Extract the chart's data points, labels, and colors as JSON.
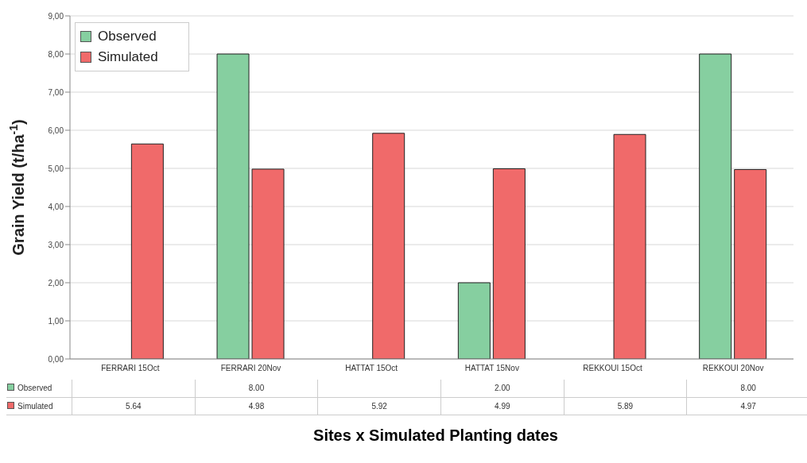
{
  "chart_data": {
    "type": "bar",
    "xlabel": "Sites x Simulated Planting dates",
    "ylabel": "Grain Yield (t/ha$^{-1}$)",
    "categories": [
      "FERRARI 15Oct",
      "FERRARI 20Nov",
      "HATTAT 15Oct",
      "HATTAT 15Nov",
      "REKKOUI 15Oct",
      "REKKOUI 20Nov"
    ],
    "series": [
      {
        "name": "Observed",
        "color": "#86cfa0",
        "values": [
          null,
          8.0,
          null,
          2.0,
          null,
          8.0
        ],
        "value_labels": [
          null,
          "8.00",
          null,
          "2.00",
          null,
          "8.00"
        ]
      },
      {
        "name": "Simulated",
        "color": "#f06a6a",
        "values": [
          5.64,
          4.98,
          5.92,
          4.99,
          5.89,
          4.97
        ],
        "value_labels": [
          "5.64",
          "4.98",
          "5.92",
          "4.99",
          "5.89",
          "4.97"
        ]
      }
    ],
    "ylim": [
      0,
      9
    ],
    "yticks": [
      {
        "value": 0,
        "label": "0,00"
      },
      {
        "value": 1,
        "label": "1,00"
      },
      {
        "value": 2,
        "label": "2,00"
      },
      {
        "value": 3,
        "label": "3,00"
      },
      {
        "value": 4,
        "label": "4,00"
      },
      {
        "value": 5,
        "label": "5,00"
      },
      {
        "value": 6,
        "label": "6,00"
      },
      {
        "value": 7,
        "label": "7,00"
      },
      {
        "value": 8,
        "label": "8,00"
      },
      {
        "value": 9,
        "label": "9,00"
      }
    ],
    "grid": "y",
    "legend": "top left"
  }
}
